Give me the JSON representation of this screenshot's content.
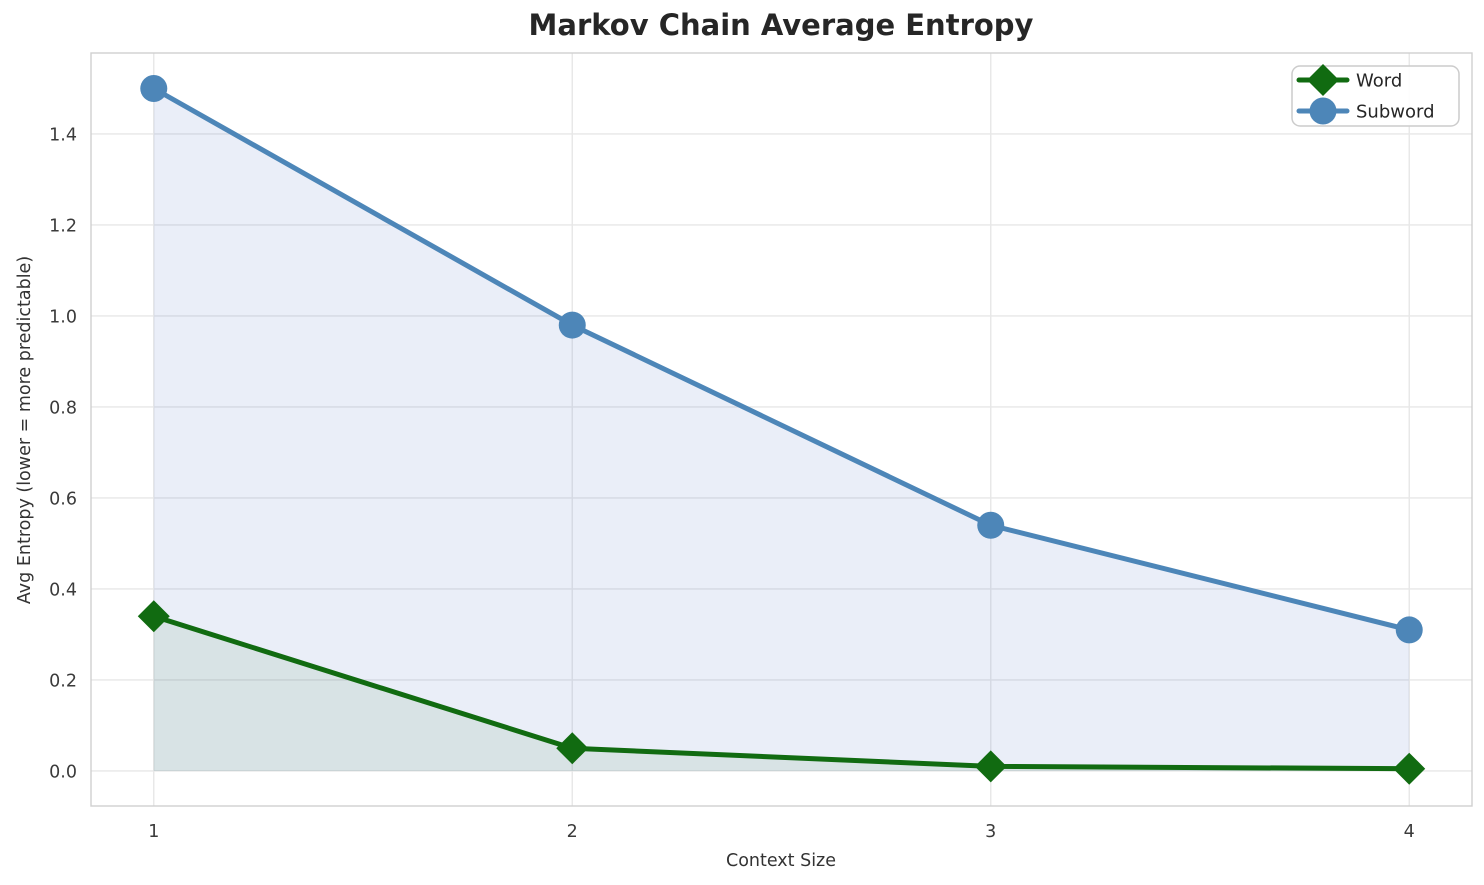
{
  "chart_data": {
    "type": "line",
    "title": "Markov Chain Average Entropy",
    "xlabel": "Context Size",
    "ylabel": "Avg Entropy (lower = more predictable)",
    "x": [
      1,
      2,
      3,
      4
    ],
    "x_tick_labels": [
      "1",
      "2",
      "3",
      "4"
    ],
    "y_tick_values": [
      0.0,
      0.2,
      0.4,
      0.6,
      0.8,
      1.0,
      1.2,
      1.4
    ],
    "y_tick_labels": [
      "0.0",
      "0.2",
      "0.4",
      "0.6",
      "0.8",
      "1.0",
      "1.2",
      "1.4"
    ],
    "xlim": [
      0.85,
      4.15
    ],
    "ylim": [
      -0.077,
      1.578
    ],
    "grid": true,
    "legend": {
      "position": "top-right",
      "entries": [
        "Word",
        "Subword"
      ]
    },
    "series": [
      {
        "name": "Word",
        "marker": "diamond",
        "color": "#116b11",
        "fill": "rgba(17,107,17,0.08)",
        "values": [
          0.34,
          0.05,
          0.01,
          0.005
        ]
      },
      {
        "name": "Subword",
        "marker": "circle",
        "color": "#4d86b8",
        "fill": "rgba(92,124,198,0.13)",
        "values": [
          1.5,
          0.98,
          0.54,
          0.31
        ]
      }
    ]
  },
  "colors": {
    "background": "#ffffff",
    "grid": "#e7e7e7",
    "frame": "#d0d0d0",
    "text": "#262626",
    "tick_text": "#3b3b3b",
    "legend_border": "#cccccc",
    "legend_bg": "#ffffff"
  }
}
